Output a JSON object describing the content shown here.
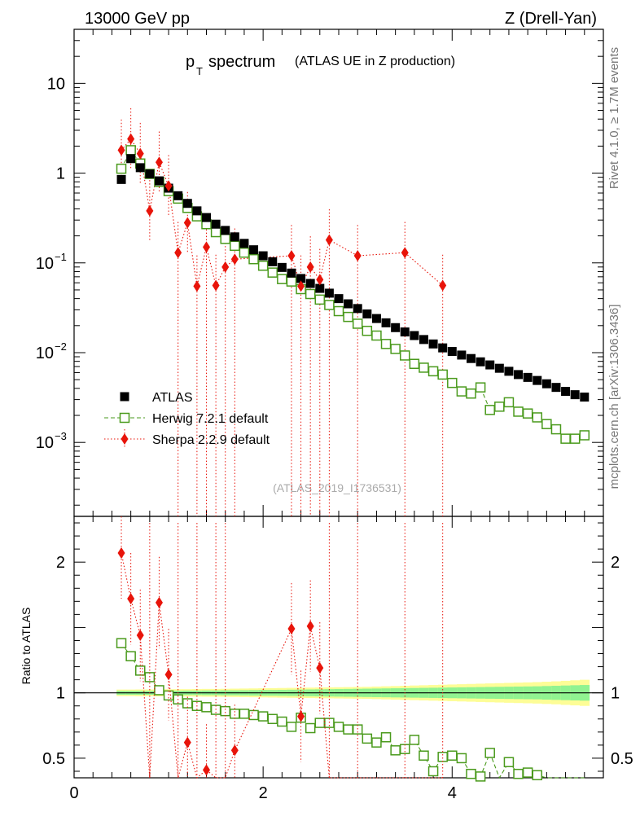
{
  "header": {
    "left_label": "13000 GeV pp",
    "right_label": "Z (Drell-Yan)"
  },
  "side_labels": {
    "rivet": "Rivet 4.1.0, ≥ 1.7M events",
    "mcplots": "mcplots.cern.ch [arXiv:1306.3436]"
  },
  "chart_data": {
    "type": "scatter",
    "title_main": "p",
    "title_sub": "T",
    "title_word": "spectrum",
    "title_paren": "(ATLAS UE in Z production)",
    "watermark": "(ATLAS_2019_I1736531)",
    "xlim": [
      0,
      5.6
    ],
    "main": {
      "yscale": "log",
      "ylim": [
        0.00015,
        40
      ],
      "yticks": [
        {
          "value": 10,
          "label": "10",
          "sup": ""
        },
        {
          "value": 1,
          "label": "1",
          "sup": ""
        },
        {
          "value": 0.1,
          "label": "10",
          "sup": "−1"
        },
        {
          "value": 0.01,
          "label": "10",
          "sup": "−2"
        },
        {
          "value": 0.001,
          "label": "10",
          "sup": "−3"
        }
      ],
      "series": [
        {
          "name": "ATLAS",
          "color": "#000000",
          "marker": "filled-square",
          "x": [
            0.5,
            0.6,
            0.7,
            0.8,
            0.9,
            1.0,
            1.1,
            1.2,
            1.3,
            1.4,
            1.5,
            1.6,
            1.7,
            1.8,
            1.9,
            2.0,
            2.1,
            2.2,
            2.3,
            2.4,
            2.5,
            2.6,
            2.7,
            2.8,
            2.9,
            3.0,
            3.1,
            3.2,
            3.3,
            3.4,
            3.5,
            3.6,
            3.7,
            3.8,
            3.9,
            4.0,
            4.1,
            4.2,
            4.3,
            4.4,
            4.5,
            4.6,
            4.7,
            4.8,
            4.9,
            5.0,
            5.1,
            5.2,
            5.3,
            5.4
          ],
          "y": [
            0.85,
            1.45,
            1.15,
            0.98,
            0.82,
            0.68,
            0.56,
            0.46,
            0.38,
            0.32,
            0.27,
            0.23,
            0.195,
            0.165,
            0.14,
            0.12,
            0.103,
            0.089,
            0.077,
            0.067,
            0.059,
            0.052,
            0.046,
            0.04,
            0.035,
            0.031,
            0.027,
            0.024,
            0.0215,
            0.019,
            0.017,
            0.0155,
            0.014,
            0.0125,
            0.0113,
            0.0103,
            0.0094,
            0.0086,
            0.0079,
            0.0073,
            0.0067,
            0.0062,
            0.0057,
            0.0053,
            0.0049,
            0.0045,
            0.0041,
            0.0037,
            0.0034,
            0.0032
          ]
        },
        {
          "name": "Herwig 7.2.1 default",
          "color": "#4a9a1c",
          "marker": "open-square",
          "x": [
            0.5,
            0.6,
            0.7,
            0.8,
            0.9,
            1.0,
            1.1,
            1.2,
            1.3,
            1.4,
            1.5,
            1.6,
            1.7,
            1.8,
            1.9,
            2.0,
            2.1,
            2.2,
            2.3,
            2.4,
            2.5,
            2.6,
            2.7,
            2.8,
            2.9,
            3.0,
            3.1,
            3.2,
            3.3,
            3.4,
            3.5,
            3.6,
            3.7,
            3.8,
            3.9,
            4.0,
            4.1,
            4.2,
            4.3,
            4.4,
            4.5,
            4.6,
            4.7,
            4.8,
            4.9,
            5.0,
            5.1,
            5.2,
            5.3,
            5.4
          ],
          "y": [
            1.12,
            1.8,
            1.28,
            0.98,
            0.8,
            0.63,
            0.52,
            0.41,
            0.33,
            0.27,
            0.22,
            0.185,
            0.155,
            0.13,
            0.11,
            0.093,
            0.078,
            0.066,
            0.062,
            0.051,
            0.045,
            0.039,
            0.034,
            0.029,
            0.025,
            0.021,
            0.0175,
            0.0155,
            0.0125,
            0.011,
            0.0093,
            0.0075,
            0.0068,
            0.0062,
            0.0057,
            0.0046,
            0.0037,
            0.0035,
            0.0041,
            0.0023,
            0.0025,
            0.0028,
            0.0022,
            0.0021,
            0.0019,
            0.0016,
            0.0014,
            0.0011,
            0.0011,
            0.0012
          ]
        },
        {
          "name": "Sherpa 2.2.9 default",
          "color": "#e8140a",
          "marker": "diamond",
          "x": [
            0.5,
            0.6,
            0.7,
            0.8,
            0.9,
            1.0,
            1.1,
            1.2,
            1.3,
            1.4,
            1.5,
            1.6,
            1.7,
            2.3,
            2.4,
            2.5,
            2.6,
            2.7,
            3.0,
            3.5,
            3.9
          ],
          "y": [
            1.8,
            2.4,
            1.65,
            0.38,
            1.32,
            0.72,
            0.13,
            0.28,
            0.055,
            0.15,
            0.056,
            0.09,
            0.11,
            0.12,
            0.055,
            0.09,
            0.065,
            0.18,
            0.12,
            0.13,
            0.056
          ]
        }
      ],
      "legend": [
        {
          "label": "ATLAS",
          "marker": "filled-square",
          "color": "#000000"
        },
        {
          "label": "Herwig 7.2.1 default",
          "marker": "open-square",
          "color": "#4a9a1c"
        },
        {
          "label": "Sherpa 2.2.9 default",
          "marker": "diamond",
          "color": "#e8140a"
        }
      ]
    },
    "ratio": {
      "ylabel": "Ratio to ATLAS",
      "ylim": [
        0.35,
        2.35
      ],
      "yticks": [
        {
          "value": 2,
          "label": "2"
        },
        {
          "value": 1,
          "label": "1"
        },
        {
          "value": 0.5,
          "label": "0.5"
        }
      ],
      "xticks": [
        {
          "value": 0,
          "label": "0"
        },
        {
          "value": 2,
          "label": "2"
        },
        {
          "value": 4,
          "label": "4"
        }
      ],
      "band_inner": [
        0.015,
        0.015,
        0.015,
        0.015,
        0.015,
        0.016,
        0.016,
        0.017,
        0.017,
        0.018,
        0.018,
        0.019,
        0.019,
        0.02,
        0.021,
        0.022,
        0.022,
        0.023,
        0.024,
        0.025,
        0.026,
        0.027,
        0.028,
        0.029,
        0.03,
        0.031,
        0.032,
        0.033,
        0.034,
        0.035,
        0.036,
        0.037,
        0.038,
        0.039,
        0.04,
        0.041,
        0.042,
        0.043,
        0.044,
        0.045,
        0.046,
        0.047,
        0.048,
        0.049,
        0.05,
        0.052,
        0.054,
        0.056,
        0.058,
        0.06
      ],
      "band_outer": [
        0.025,
        0.025,
        0.026,
        0.026,
        0.027,
        0.027,
        0.028,
        0.028,
        0.029,
        0.03,
        0.03,
        0.031,
        0.032,
        0.033,
        0.034,
        0.035,
        0.036,
        0.037,
        0.038,
        0.039,
        0.04,
        0.041,
        0.042,
        0.043,
        0.044,
        0.045,
        0.046,
        0.048,
        0.05,
        0.052,
        0.054,
        0.056,
        0.058,
        0.06,
        0.062,
        0.064,
        0.066,
        0.068,
        0.07,
        0.072,
        0.074,
        0.076,
        0.078,
        0.08,
        0.082,
        0.085,
        0.088,
        0.092,
        0.096,
        0.1
      ],
      "herwig": [
        1.38,
        1.28,
        1.17,
        1.12,
        1.02,
        0.98,
        0.95,
        0.92,
        0.9,
        0.89,
        0.87,
        0.86,
        0.84,
        0.84,
        0.83,
        0.82,
        0.8,
        0.78,
        0.74,
        0.81,
        0.73,
        0.77,
        0.77,
        0.74,
        0.72,
        0.72,
        0.65,
        0.62,
        0.66,
        0.56,
        0.57,
        0.64,
        0.52,
        0.4,
        0.51,
        0.52,
        0.5,
        0.38,
        0.36,
        0.54,
        0.34,
        0.47,
        0.38,
        0.39,
        0.37,
        0.34,
        0.32,
        0.33,
        0.34,
        0.35
      ],
      "sherpa_x": [
        0.5,
        0.6,
        0.7,
        0.9,
        1.0,
        1.2,
        1.4,
        1.7,
        2.3,
        2.4,
        2.5,
        2.6
      ],
      "sherpa": [
        2.07,
        1.72,
        1.44,
        1.69,
        1.14,
        0.62,
        0.41,
        0.56,
        1.49,
        0.82,
        1.51,
        1.19
      ],
      "sherpa_offscale_x": [
        0.8,
        1.1,
        1.3,
        1.5,
        1.6,
        2.7,
        3.0,
        3.5,
        3.9
      ]
    }
  }
}
